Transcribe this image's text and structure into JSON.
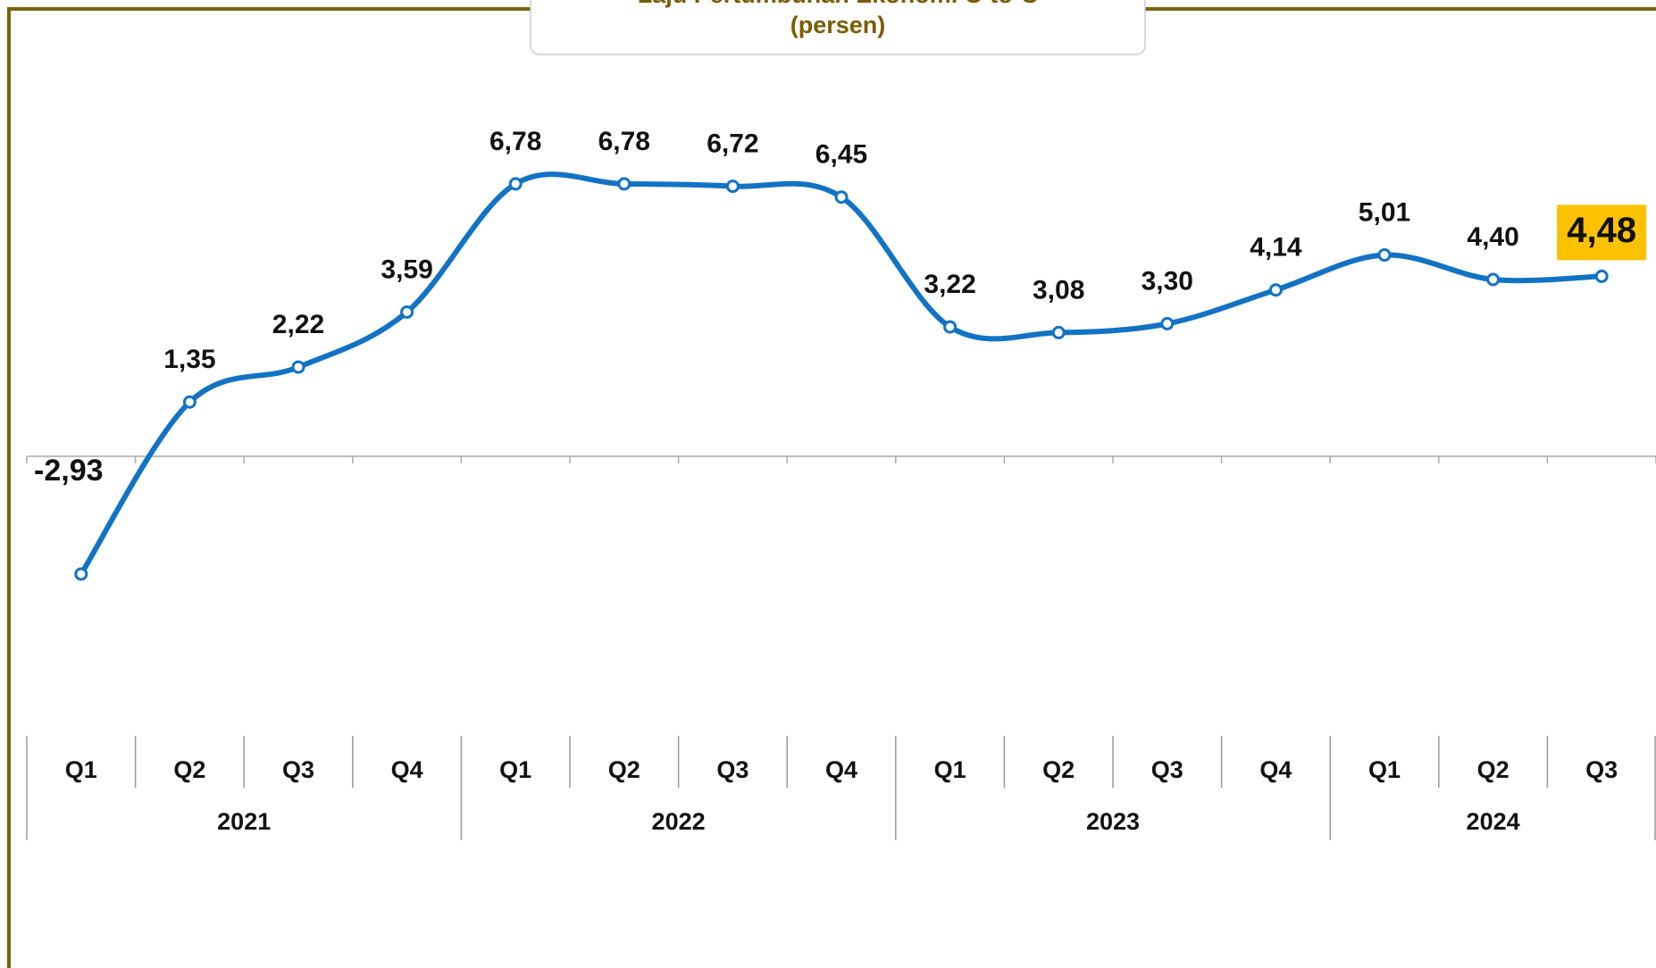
{
  "chart_data": {
    "type": "line",
    "title": "Laju Pertumbuhan Ekonomi C-to-C",
    "subtitle": "(persen)",
    "categories": [
      "Q1",
      "Q2",
      "Q3",
      "Q4",
      "Q1",
      "Q2",
      "Q3",
      "Q4",
      "Q1",
      "Q2",
      "Q3",
      "Q4",
      "Q1",
      "Q2",
      "Q3"
    ],
    "years": [
      "2021",
      "2022",
      "2023",
      "2024"
    ],
    "series": [
      {
        "name": "Laju Pertumbuhan Ekonomi",
        "color": "#1273c4",
        "values": [
          -2.93,
          1.35,
          2.22,
          3.59,
          6.78,
          6.78,
          6.72,
          6.45,
          3.22,
          3.08,
          3.3,
          4.14,
          5.01,
          4.4,
          4.48
        ],
        "value_labels": [
          "-2,93",
          "1,35",
          "2,22",
          "3,59",
          "6,78",
          "6,78",
          "6,72",
          "6,45",
          "3,22",
          "3,08",
          "3,30",
          "4,14",
          "5,01",
          "4,40",
          "4,48"
        ]
      }
    ],
    "ylim": [
      -7,
      9
    ]
  }
}
